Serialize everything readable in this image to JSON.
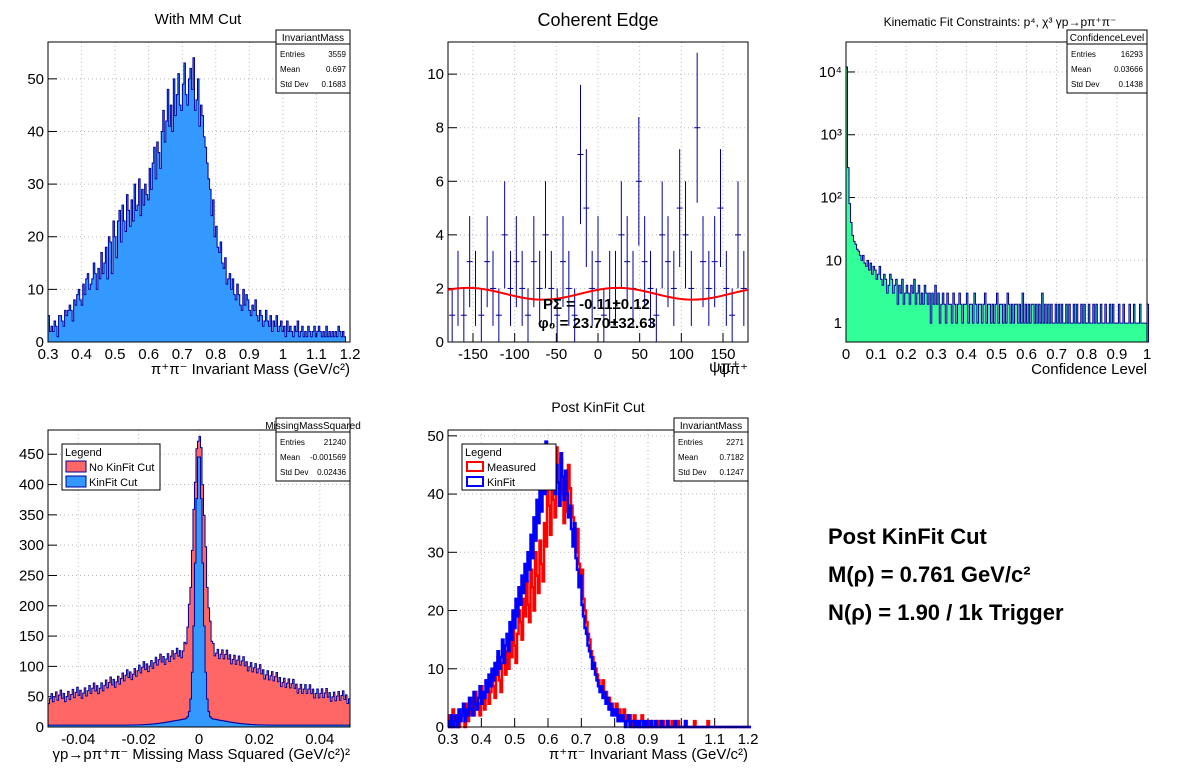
{
  "colors": {
    "blue_fill": "#3399ff",
    "green_fill": "#33ff99",
    "red_fill": "#ff6666",
    "hist_line": "#000099",
    "fit_line": "#ff0000",
    "measured_line": "#ff0000",
    "kinfit_line": "#0000ff",
    "grid": "#bbbbbb"
  },
  "summary": {
    "title": "Post KinFit Cut",
    "line1": "M(ρ) = 0.761 GeV/c²",
    "line2": "N(ρ) = 1.90 / 1k Trigger"
  },
  "chart_data": [
    {
      "type": "bar",
      "title": "With MM Cut",
      "xlabel": "π⁺π⁻ Invariant Mass (GeV/c²)",
      "ylabel": "",
      "xlim": [
        0.3,
        1.2
      ],
      "ylim": [
        0,
        57
      ],
      "xticks": [
        "0.3",
        "0.4",
        "0.5",
        "0.6",
        "0.7",
        "0.8",
        "0.9",
        "1",
        "1.1",
        "1.2"
      ],
      "yticks": [
        "0",
        "10",
        "20",
        "30",
        "40",
        "50"
      ],
      "grid": true,
      "stats": {
        "name": "InvariantMass",
        "rows": [
          [
            "Entries",
            "3559"
          ],
          [
            "Mean",
            "0.697"
          ],
          [
            "Std Dev",
            "0.1683"
          ]
        ]
      },
      "bin_width": 0.0045,
      "values": [
        5,
        2,
        3,
        2,
        4,
        3,
        1,
        5,
        5,
        4,
        3,
        6,
        5,
        6,
        7,
        6,
        4,
        8,
        7,
        9,
        10,
        8,
        7,
        11,
        9,
        12,
        13,
        10,
        11,
        12,
        15,
        13,
        10,
        14,
        12,
        17,
        13,
        15,
        18,
        12,
        20,
        19,
        13,
        23,
        20,
        16,
        23,
        25,
        19,
        26,
        23,
        21,
        28,
        25,
        22,
        27,
        23,
        30,
        25,
        26,
        31,
        24,
        29,
        26,
        30,
        28,
        27,
        33,
        29,
        34,
        37,
        31,
        38,
        36,
        33,
        40,
        44,
        38,
        42,
        48,
        41,
        45,
        40,
        50,
        43,
        47,
        51,
        45,
        44,
        49,
        53,
        47,
        45,
        50,
        52,
        48,
        54,
        44,
        46,
        50,
        41,
        45,
        43,
        39,
        37,
        34,
        31,
        29,
        24,
        27,
        20,
        22,
        18,
        17,
        19,
        15,
        14,
        16,
        11,
        12,
        13,
        10,
        12,
        9,
        8,
        11,
        9,
        7,
        6,
        10,
        7,
        9,
        8,
        6,
        5,
        7,
        6,
        8,
        5,
        4,
        6,
        5,
        3,
        4,
        6,
        4,
        3,
        5,
        2,
        4,
        3,
        5,
        2,
        3,
        4,
        2,
        3,
        1,
        4,
        2,
        3,
        2,
        1,
        3,
        2,
        4,
        1,
        2,
        3,
        1,
        2,
        1,
        3,
        2,
        1,
        2,
        3,
        1,
        2,
        3,
        2,
        1,
        2,
        1,
        3,
        1,
        2,
        1,
        2,
        1,
        2,
        1,
        3,
        2,
        1,
        2,
        1
      ]
    },
    {
      "type": "scatter",
      "title": "Coherent Edge",
      "xlabel": "ψπ⁺",
      "ylabel": "",
      "xlim": [
        -180,
        180
      ],
      "ylim": [
        0,
        11.2
      ],
      "xticks": [
        "-150",
        "-100",
        "-50",
        "0",
        "50",
        "100",
        "150"
      ],
      "yticks": [
        "0",
        "2",
        "4",
        "6",
        "8",
        "10"
      ],
      "grid": true,
      "fit_label_1": "PΣ = -0.11±0.12",
      "fit_label_2": "φ₀ = 23.70±32.63",
      "fit": {
        "p0": 1.8,
        "amp": 0.22,
        "phi0_deg": 23.7
      },
      "x": [
        -175,
        -168,
        -161,
        -154,
        -147,
        -140,
        -133,
        -126,
        -119,
        -112,
        -105,
        -98,
        -91,
        -84,
        -77,
        -70,
        -63,
        -56,
        -49,
        -42,
        -35,
        -28,
        -21,
        -14,
        -7,
        0,
        7,
        14,
        21,
        28,
        35,
        42,
        49,
        56,
        63,
        70,
        77,
        84,
        91,
        98,
        105,
        112,
        119,
        126,
        133,
        140,
        147,
        154,
        161,
        168,
        175
      ],
      "values": [
        1,
        2,
        1,
        3,
        2,
        1,
        3,
        2,
        1,
        4,
        2,
        3,
        2,
        1,
        3,
        2,
        4,
        2,
        1,
        3,
        2,
        1,
        7,
        5,
        2,
        3,
        1,
        2,
        2,
        4,
        3,
        2,
        6,
        3,
        2,
        1,
        4,
        3,
        2,
        5,
        4,
        2,
        8,
        3,
        2,
        3,
        5,
        2,
        1,
        4,
        2
      ],
      "errors": [
        1,
        1.4,
        1,
        1.7,
        1.4,
        1,
        1.7,
        1.4,
        1,
        2,
        1.4,
        1.7,
        1.4,
        1,
        1.7,
        1.4,
        2,
        1.4,
        1,
        1.7,
        1.4,
        1,
        2.6,
        2.2,
        1.4,
        1.7,
        1,
        1.4,
        1.4,
        2,
        1.7,
        1.4,
        2.4,
        1.7,
        1.4,
        1,
        2,
        1.7,
        1.4,
        2.2,
        2,
        1.4,
        2.8,
        1.7,
        1.4,
        1.7,
        2.2,
        1.4,
        1,
        2,
        1.4
      ]
    },
    {
      "type": "bar",
      "title": "Kinematic Fit Constraints: p⁴, χ³ γp→pπ⁺π⁻",
      "xlabel": "Confidence Level",
      "ylabel": "",
      "log_y": true,
      "xlim": [
        0,
        1
      ],
      "ylim": [
        0.5,
        30000
      ],
      "xticks": [
        "0",
        "0.1",
        "0.2",
        "0.3",
        "0.4",
        "0.5",
        "0.6",
        "0.7",
        "0.8",
        "0.9",
        "1"
      ],
      "yticks": [
        "1",
        "10",
        "10²",
        "10³",
        "10⁴"
      ],
      "grid": true,
      "stats": {
        "name": "ConfidenceLevel",
        "rows": [
          [
            "Entries",
            "16293"
          ],
          [
            "Mean",
            "0.03666"
          ],
          [
            "Std Dev",
            "0.1438"
          ]
        ]
      },
      "bin_width": 0.005,
      "values": [
        12000,
        300,
        80,
        40,
        25,
        20,
        18,
        15,
        14,
        12,
        10,
        12,
        9,
        8,
        10,
        7,
        9,
        6,
        8,
        7,
        5,
        6,
        8,
        5,
        4,
        6,
        5,
        3,
        4,
        6,
        5,
        3,
        4,
        5,
        2,
        4,
        3,
        5,
        2,
        3,
        4,
        3,
        2,
        4,
        3,
        5,
        2,
        3,
        4,
        2,
        3,
        2,
        4,
        3,
        2,
        3,
        1,
        3,
        2,
        4,
        2,
        3,
        1,
        2,
        3,
        2,
        1,
        3,
        2,
        2,
        1,
        3,
        2,
        1,
        2,
        3,
        2,
        1,
        2,
        2,
        3,
        1,
        2,
        2,
        1,
        3,
        2,
        1,
        2,
        2,
        1,
        2,
        3,
        1,
        2,
        2,
        1,
        2,
        1,
        2,
        3,
        1,
        2,
        2,
        1,
        2,
        1,
        3,
        2,
        1,
        2,
        1,
        2,
        2,
        1,
        2,
        1,
        3,
        1,
        2,
        1,
        2,
        1,
        2,
        2,
        1,
        2,
        1,
        2,
        1,
        3,
        1,
        2,
        1,
        2,
        1,
        2,
        1,
        1,
        2,
        1,
        2,
        1,
        2,
        1,
        1,
        2,
        1,
        2,
        1,
        1,
        2,
        1,
        2,
        1,
        1,
        2,
        1,
        2,
        1,
        1,
        2,
        1,
        1,
        2,
        1,
        2,
        1,
        1,
        2,
        1,
        1,
        2,
        1,
        1,
        2,
        1,
        2,
        1,
        1,
        1,
        2,
        1,
        1,
        2,
        1,
        1,
        1,
        2,
        1,
        1,
        2,
        1,
        1,
        1,
        2,
        1,
        1,
        1,
        1,
        2
      ]
    },
    {
      "type": "area",
      "title": "",
      "xlabel": "γp→pπ⁺π⁻ Missing Mass Squared (GeV/c²)²",
      "ylabel": "",
      "xlim": [
        -0.05,
        0.05
      ],
      "ylim": [
        0,
        490
      ],
      "xticks": [
        "-0.04",
        "-0.02",
        "0",
        "0.02",
        "0.04"
      ],
      "yticks": [
        "0",
        "50",
        "100",
        "150",
        "200",
        "250",
        "300",
        "350",
        "400",
        "450"
      ],
      "grid": true,
      "legend_title": "Legend",
      "stats": {
        "name": "MissingMassSquared",
        "rows": [
          [
            "Entries",
            "21240"
          ],
          [
            "Mean",
            "-0.001569"
          ],
          [
            "Std Dev",
            "0.02436"
          ]
        ]
      },
      "series": [
        {
          "name": "No KinFit Cut",
          "shape": {
            "base": 45,
            "slope_amp": 80,
            "wide_w": 0.02,
            "peak_amp": 360,
            "peak_w": 0.0018
          }
        },
        {
          "name": "KinFit Cut",
          "shape": {
            "base": 3,
            "slope_amp": 12,
            "wide_w": 0.008,
            "peak_amp": 440,
            "peak_w": 0.0012
          }
        }
      ]
    },
    {
      "type": "line",
      "title": "Post KinFit Cut",
      "xlabel": "π⁺π⁻ Invariant Mass (GeV/c²)",
      "ylabel": "",
      "xlim": [
        0.3,
        1.2
      ],
      "ylim": [
        0,
        51
      ],
      "xticks": [
        "0.3",
        "0.4",
        "0.5",
        "0.6",
        "0.7",
        "0.8",
        "0.9",
        "1",
        "1.1",
        "1.2"
      ],
      "yticks": [
        "0",
        "10",
        "20",
        "30",
        "40",
        "50"
      ],
      "grid": true,
      "legend_title": "Legend",
      "stats": {
        "name": "InvariantMass",
        "rows": [
          [
            "Entries",
            "2271"
          ],
          [
            "Mean",
            "0.7182"
          ],
          [
            "Std Dev",
            "0.1247"
          ]
        ]
      },
      "bin_width": 0.0045,
      "series": [
        {
          "name": "Measured",
          "values": [
            0,
            2,
            0,
            3,
            1,
            0,
            2,
            0,
            1,
            3,
            2,
            0,
            4,
            1,
            2,
            3,
            5,
            2,
            6,
            3,
            4,
            2,
            7,
            5,
            3,
            6,
            8,
            4,
            6,
            9,
            7,
            5,
            10,
            12,
            8,
            6,
            11,
            14,
            9,
            13,
            10,
            15,
            12,
            17,
            14,
            11,
            16,
            20,
            18,
            15,
            22,
            19,
            25,
            21,
            18,
            27,
            24,
            20,
            30,
            26,
            23,
            32,
            28,
            25,
            35,
            31,
            47,
            38,
            33,
            44,
            39,
            36,
            48,
            42,
            38,
            46,
            40,
            35,
            43,
            37,
            45,
            41,
            38,
            36,
            33,
            30,
            34,
            28,
            25,
            27,
            22,
            20,
            18,
            16,
            15,
            13,
            12,
            11,
            10,
            9,
            8,
            7,
            6,
            8,
            5,
            6,
            4,
            5,
            3,
            4,
            3,
            2,
            4,
            2,
            3,
            1,
            2,
            3,
            1,
            2,
            1,
            2,
            1,
            0,
            2,
            1,
            1,
            0,
            1,
            2,
            0,
            1,
            0,
            1,
            0,
            1,
            0,
            0,
            1,
            0,
            1,
            0,
            0,
            1,
            0,
            0,
            1,
            0,
            0,
            1,
            0,
            0,
            0,
            1,
            0,
            0,
            0,
            0,
            1,
            0,
            0,
            0,
            0,
            0,
            1,
            0,
            0,
            0,
            0,
            0,
            0,
            0,
            0,
            1,
            0,
            0,
            0,
            0,
            0,
            0,
            0,
            0,
            0,
            0,
            0,
            0,
            0,
            0,
            0,
            0,
            0,
            0,
            0,
            0,
            0,
            0,
            0,
            0,
            0,
            0,
            0,
            0
          ]
        },
        {
          "name": "KinFit",
          "values": [
            1,
            0,
            2,
            0,
            1,
            2,
            0,
            3,
            1,
            2,
            4,
            1,
            3,
            2,
            5,
            3,
            2,
            6,
            4,
            3,
            5,
            7,
            4,
            6,
            5,
            8,
            6,
            9,
            7,
            10,
            8,
            11,
            9,
            13,
            10,
            12,
            15,
            11,
            14,
            16,
            13,
            18,
            15,
            20,
            17,
            22,
            19,
            24,
            21,
            26,
            23,
            28,
            25,
            30,
            27,
            33,
            29,
            36,
            32,
            39,
            35,
            42,
            37,
            44,
            40,
            49,
            43,
            46,
            41,
            48,
            44,
            40,
            45,
            42,
            38,
            47,
            43,
            39,
            44,
            40,
            36,
            38,
            34,
            31,
            35,
            29,
            27,
            24,
            26,
            21,
            19,
            17,
            16,
            14,
            13,
            12,
            10,
            11,
            9,
            8,
            7,
            6,
            7,
            5,
            6,
            4,
            5,
            3,
            4,
            2,
            3,
            2,
            3,
            1,
            2,
            1,
            2,
            1,
            0,
            1,
            2,
            0,
            1,
            1,
            0,
            1,
            0,
            1,
            0,
            0,
            1,
            0,
            1,
            0,
            0,
            1,
            0,
            0,
            1,
            0,
            0,
            0,
            1,
            0,
            0,
            0,
            1,
            0,
            0,
            0,
            0,
            1,
            0,
            0,
            0,
            0,
            0,
            0,
            1,
            0,
            0,
            0,
            0,
            0,
            0,
            0,
            0,
            0,
            0,
            0,
            0,
            0,
            0,
            0,
            0,
            0,
            0,
            0,
            0,
            0,
            0,
            0,
            0,
            0,
            0,
            0,
            0,
            0,
            0,
            0,
            0,
            0,
            0,
            0,
            0,
            0,
            0,
            0,
            0,
            0,
            0,
            0
          ]
        }
      ]
    }
  ]
}
